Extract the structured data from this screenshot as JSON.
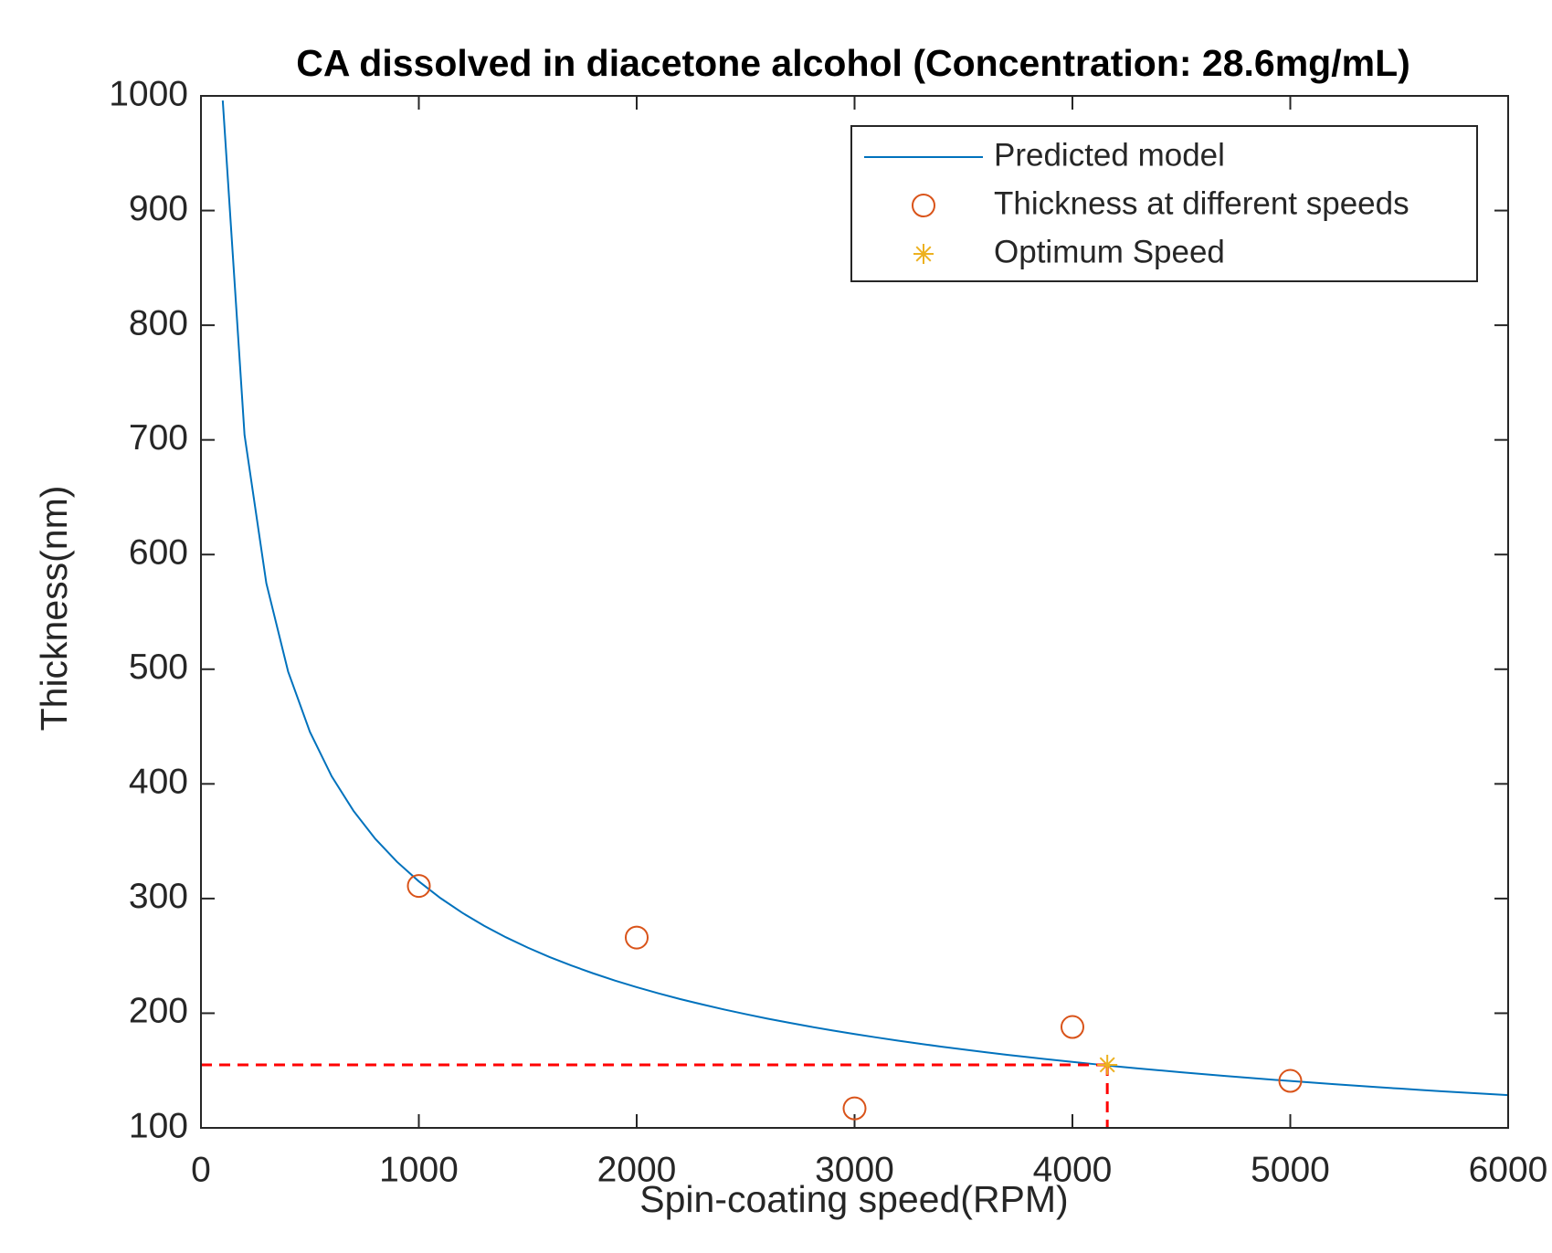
{
  "chart_data": {
    "type": "scatter",
    "title": "CA dissolved in diacetone alcohol (Concentration: 28.6mg/mL)",
    "x_label": "Spin-coating speed(RPM)",
    "y_label": "Thickness(nm)",
    "xlim": [
      0,
      6000
    ],
    "xticks": [
      0,
      1000,
      2000,
      3000,
      4000,
      5000,
      6000
    ],
    "ylim": [
      100,
      1000
    ],
    "yticks": [
      100,
      200,
      300,
      400,
      500,
      600,
      700,
      800,
      900,
      1000
    ],
    "legend": "top-right",
    "series": [
      {
        "name": "Predicted model",
        "color": "#0072bd",
        "marker": "line",
        "x": [
          100,
          200,
          300,
          400,
          500,
          600,
          700,
          800,
          900,
          1000,
          1100,
          1200,
          1300,
          1400,
          1500,
          1600,
          1700,
          1800,
          1900,
          2000,
          2100,
          2200,
          2300,
          2400,
          2500,
          2600,
          2700,
          2800,
          2900,
          3000,
          3100,
          3200,
          3300,
          3400,
          3500,
          3600,
          3700,
          3800,
          3900,
          4000,
          4100,
          4200,
          4300,
          4400,
          4500,
          4600,
          4700,
          4800,
          4900,
          5000,
          5100,
          5200,
          5300,
          5400,
          5500,
          5600,
          5700,
          5800,
          5900,
          6000
        ],
        "values": [
          996,
          704.3,
          575,
          498,
          445.4,
          406.6,
          376.5,
          352.1,
          332,
          315,
          300.3,
          287.5,
          276.2,
          266.2,
          257.2,
          249,
          241.6,
          234.8,
          228.5,
          222.7,
          217.3,
          212.3,
          207.7,
          203.3,
          199.2,
          195.3,
          191.7,
          188.2,
          184.9,
          181.8,
          178.9,
          176.1,
          173.4,
          170.8,
          168.4,
          166,
          163.7,
          161.6,
          159.5,
          157.5,
          155.6,
          153.7,
          151.9,
          150.2,
          148.5,
          146.9,
          145.3,
          143.8,
          142.3,
          140.9,
          139.5,
          138.1,
          136.8,
          135.5,
          134.3,
          133.1,
          131.9,
          130.8,
          129.7,
          128.6
        ]
      },
      {
        "name": "Thickness at different speeds",
        "color": "#d95319",
        "marker": "circle",
        "x": [
          1000,
          2000,
          3000,
          4000,
          5000
        ],
        "values": [
          311,
          266,
          117,
          188,
          141
        ]
      },
      {
        "name": "Optimum Speed",
        "color": "#edb120",
        "marker": "asterisk",
        "guide_color": "#ff0000",
        "x": [
          4160
        ],
        "values": [
          155
        ]
      }
    ]
  }
}
